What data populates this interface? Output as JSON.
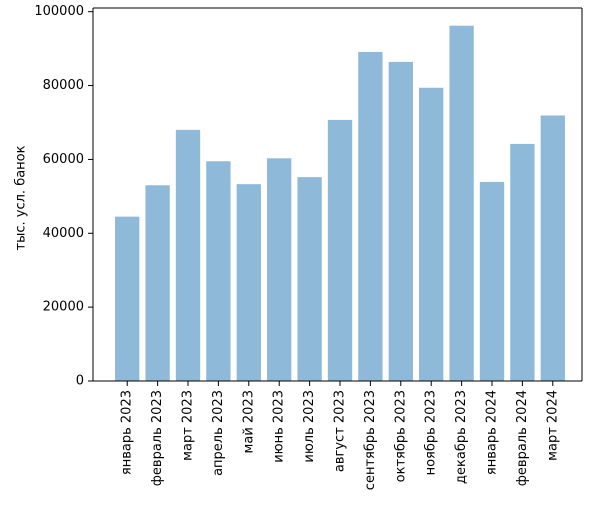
{
  "chart_data": {
    "type": "bar",
    "title": "",
    "xlabel": "",
    "ylabel": "тыс. усл. банок",
    "categories": [
      "январь 2023",
      "февраль 2023",
      "март 2023",
      "апрель 2023",
      "май 2023",
      "июнь 2023",
      "июль 2023",
      "август 2023",
      "сентябрь 2023",
      "октябрь 2023",
      "ноябрь 2023",
      "декабрь 2023",
      "январь 2024",
      "февраль 2024",
      "март 2024"
    ],
    "values": [
      44500,
      53000,
      68000,
      59500,
      53300,
      60300,
      55200,
      70700,
      89100,
      86400,
      79400,
      96200,
      53900,
      64200,
      71900
    ],
    "ylim": [
      0,
      101000
    ],
    "yticks": [
      0,
      20000,
      40000,
      60000,
      80000,
      100000
    ],
    "ytick_labels": [
      "0",
      "20000",
      "40000",
      "60000",
      "80000",
      "100000"
    ],
    "grid": false,
    "legend": "none",
    "colors": {
      "bar": "#8fb9d9",
      "axis": "#000000",
      "background": "#ffffff"
    }
  }
}
